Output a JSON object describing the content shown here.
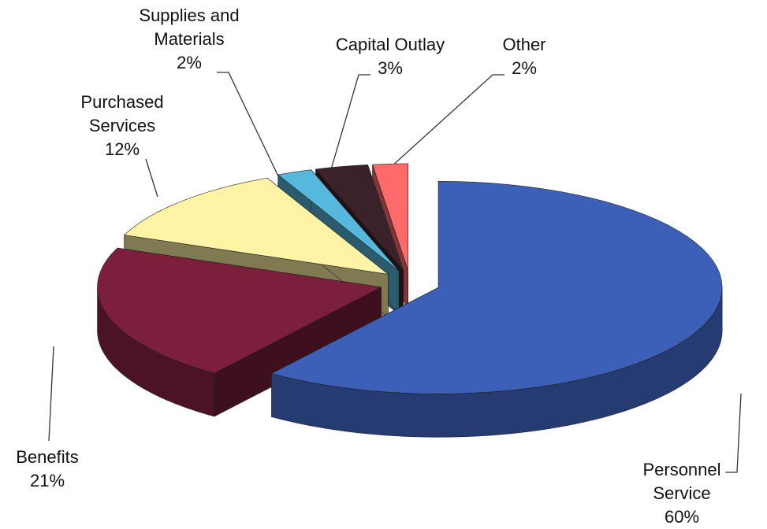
{
  "chart_data": {
    "type": "pie",
    "categories": [
      "Personnel Service",
      "Benefits",
      "Purchased Services",
      "Supplies and Materials",
      "Capital Outlay",
      "Other"
    ],
    "values": [
      60,
      21,
      12,
      2,
      3,
      2
    ],
    "value_labels": [
      "60%",
      "21%",
      "12%",
      "2%",
      "3%",
      "2%"
    ],
    "colors": [
      "#3c5fb8",
      "#7b1f3c",
      "#fff3a6",
      "#56b8dc",
      "#3b2129",
      "#ff6b6b"
    ]
  }
}
